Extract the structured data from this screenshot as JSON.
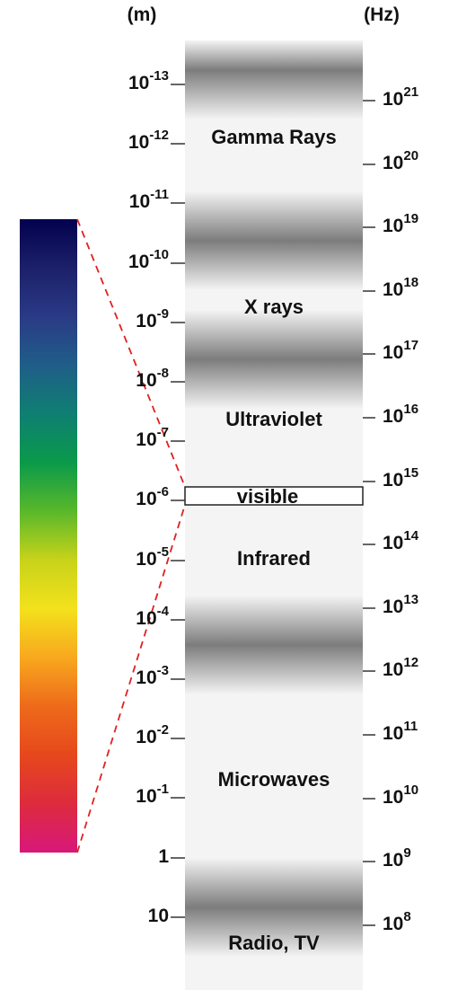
{
  "units": {
    "wavelength": "(m)",
    "frequency": "(Hz)"
  },
  "bands": [
    "Gamma Rays",
    "X rays",
    "Ultraviolet",
    "visible",
    "Infrared",
    "Microwaves",
    "Radio, TV"
  ],
  "wavelength_ticks": [
    {
      "base": "10",
      "exp": "-13"
    },
    {
      "base": "10",
      "exp": "-12"
    },
    {
      "base": "10",
      "exp": "-11"
    },
    {
      "base": "10",
      "exp": "-10"
    },
    {
      "base": "10",
      "exp": "-9"
    },
    {
      "base": "10",
      "exp": "-8"
    },
    {
      "base": "10",
      "exp": "-7"
    },
    {
      "base": "10",
      "exp": "-6"
    },
    {
      "base": "10",
      "exp": "-5"
    },
    {
      "base": "10",
      "exp": "-4"
    },
    {
      "base": "10",
      "exp": "-3"
    },
    {
      "base": "10",
      "exp": "-2"
    },
    {
      "base": "10",
      "exp": "-1"
    },
    {
      "base": "1",
      "exp": ""
    },
    {
      "base": "10",
      "exp": ""
    }
  ],
  "frequency_ticks": [
    {
      "base": "10",
      "exp": "21"
    },
    {
      "base": "10",
      "exp": "20"
    },
    {
      "base": "10",
      "exp": "19"
    },
    {
      "base": "10",
      "exp": "18"
    },
    {
      "base": "10",
      "exp": "17"
    },
    {
      "base": "10",
      "exp": "16"
    },
    {
      "base": "10",
      "exp": "15"
    },
    {
      "base": "10",
      "exp": "14"
    },
    {
      "base": "10",
      "exp": "13"
    },
    {
      "base": "10",
      "exp": "12"
    },
    {
      "base": "10",
      "exp": "11"
    },
    {
      "base": "10",
      "exp": "10"
    },
    {
      "base": "10",
      "exp": "9"
    },
    {
      "base": "10",
      "exp": "8"
    }
  ],
  "colors": {
    "visible_spectrum": [
      "#02014f",
      "#1c2069",
      "#2a3a86",
      "#1f5e88",
      "#0f7f72",
      "#0a9a4a",
      "#5ab82a",
      "#c8d31a",
      "#f3e11c",
      "#f8a81e",
      "#ee6a1b",
      "#e6481c",
      "#dd2b3d",
      "#d8187a"
    ],
    "band_dark": "#7c7c7c",
    "band_light": "#f4f4f4",
    "connector": "#e02020",
    "tick": "#333333"
  }
}
